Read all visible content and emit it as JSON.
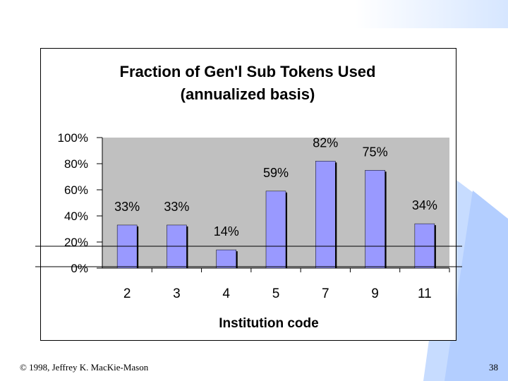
{
  "slide": {
    "footer_left": "© 1998, Jeffrey K. MacKie-Mason",
    "page_number": "38"
  },
  "chart_data": {
    "type": "bar",
    "title_line1": "Fraction of Gen'l Sub Tokens Used",
    "title_line2": "(annualized basis)",
    "xlabel": "Institution code",
    "ylabel": "",
    "categories": [
      "2",
      "3",
      "4",
      "5",
      "7",
      "9",
      "11"
    ],
    "values": [
      33,
      33,
      14,
      59,
      82,
      75,
      34
    ],
    "data_labels": [
      "33%",
      "33%",
      "14%",
      "59%",
      "82%",
      "75%",
      "34%"
    ],
    "yticks": [
      "0%",
      "20%",
      "40%",
      "60%",
      "80%",
      "100%"
    ],
    "ylim": [
      0,
      100
    ],
    "grid": false,
    "colors": {
      "bar": "#9999ff",
      "plot_bg": "#c0c0c0",
      "axis": "#000000"
    }
  }
}
